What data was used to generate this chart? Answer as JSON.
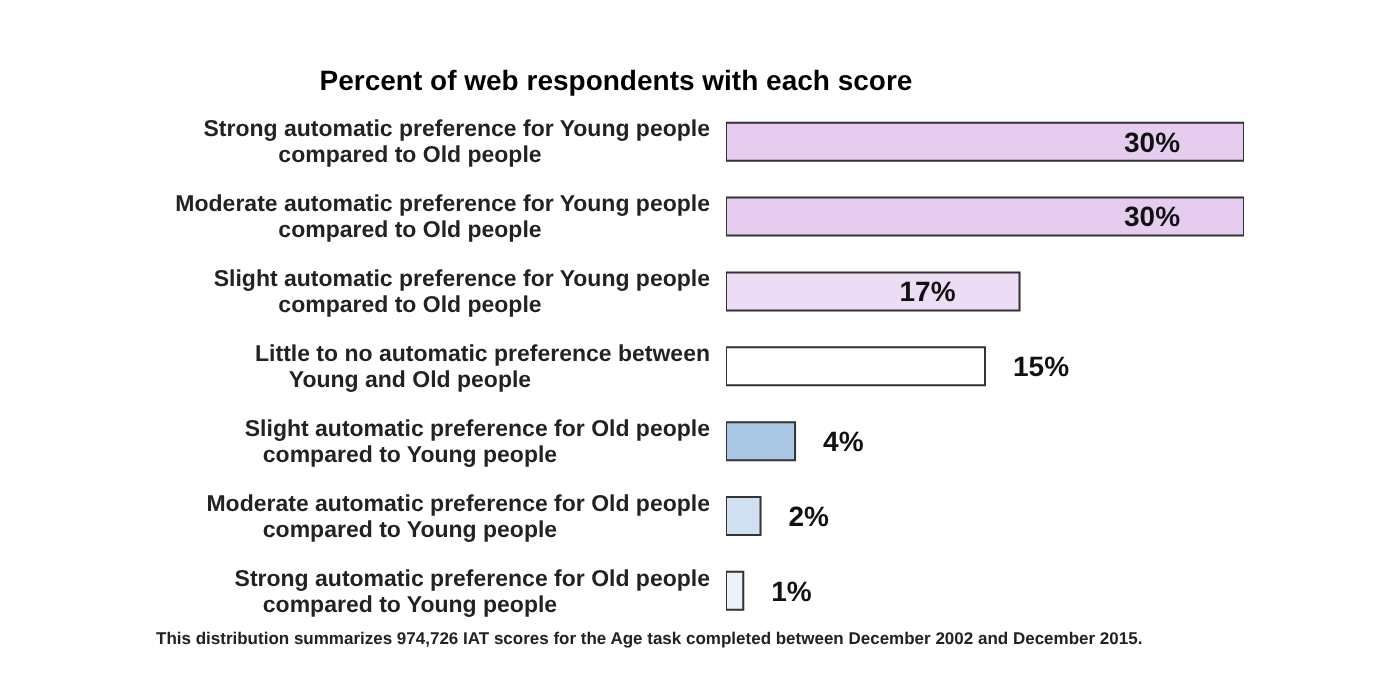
{
  "chart_data": {
    "type": "bar",
    "orientation": "horizontal",
    "title": "Percent of web respondents with each score",
    "categories": [
      "Strong automatic preference for Young people compared to Old people",
      "Moderate automatic preference for Young people compared to Old people",
      "Slight automatic preference for Young people compared to Old people",
      "Little to no automatic preference between Young and Old people",
      "Slight automatic preference for Old people compared to Young people",
      "Moderate automatic preference for Old people compared to Young people",
      "Strong automatic preference for Old people compared to Young people"
    ],
    "values": [
      30,
      30,
      17,
      15,
      4,
      2,
      1
    ],
    "value_labels": [
      "30%",
      "30%",
      "17%",
      "15%",
      "4%",
      "2%",
      "1%"
    ],
    "colors": [
      "#e6cdf0",
      "#e6cdf0",
      "#ecdcf4",
      "#ffffff",
      "#a9c6e4",
      "#cfe0f2",
      "#eaf2fa"
    ],
    "annotations": [
      "This distribution summarizes 974,726 IAT scores for the Age task completed between December 2002 and December 2015."
    ]
  }
}
